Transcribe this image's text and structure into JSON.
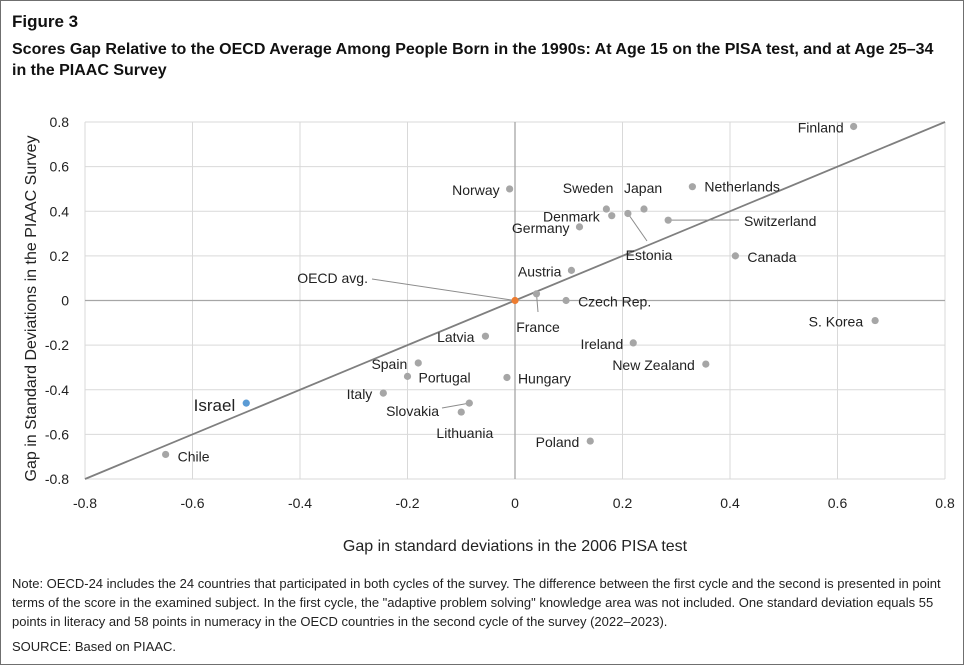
{
  "figure_label": "Figure 3",
  "title": "Scores Gap Relative to the OECD Average Among People Born in the 1990s: At Age 15 on the PISA test, and at Age 25–34 in the PIAAC Survey",
  "note": "Note: OECD-24 includes the 24 countries that participated in both cycles of the survey.  The difference between the first cycle and the second is presented in point terms of the score in the examined subject.  In the first cycle, the \"adaptive problem solving\" knowledge area was not included.  One standard deviation equals 55 points in literacy and 58 points in numeracy in the OECD countries in the second cycle of the survey (2022–2023).",
  "source": "SOURCE: Based on PIAAC.",
  "colors": {
    "point": "#a6a6a6",
    "israel": "#5b9bd5",
    "oecd": "#ed7d31",
    "line": "#7f7f7f",
    "grid": "#d9d9d9"
  },
  "chart_data": {
    "type": "scatter",
    "xlabel": "Gap in standard deviations in the 2006 PISA test",
    "ylabel": "Gap in Standard Deviations in the PIAAC Survey",
    "xlim": [
      -0.8,
      0.8
    ],
    "ylim": [
      -0.8,
      0.8
    ],
    "xticks": [
      "-0.8",
      "-0.6",
      "-0.4",
      "-0.2",
      "0",
      "0.2",
      "0.4",
      "0.6",
      "0.8"
    ],
    "yticks": [
      "0.8",
      "0.6",
      "0.4",
      "0.2",
      "0",
      "-0.2",
      "-0.4",
      "-0.6",
      "-0.8"
    ],
    "grid": true,
    "reference_line": "y = x",
    "points": [
      {
        "label": "Finland",
        "x": 0.63,
        "y": 0.78
      },
      {
        "label": "Norway",
        "x": -0.01,
        "y": 0.5
      },
      {
        "label": "Netherlands",
        "x": 0.33,
        "y": 0.51
      },
      {
        "label": "Sweden",
        "x": 0.17,
        "y": 0.41
      },
      {
        "label": "Japan",
        "x": 0.24,
        "y": 0.41
      },
      {
        "label": "Denmark",
        "x": 0.18,
        "y": 0.38
      },
      {
        "label": "Estonia",
        "x": 0.21,
        "y": 0.39
      },
      {
        "label": "Switzerland",
        "x": 0.285,
        "y": 0.36
      },
      {
        "label": "Germany",
        "x": 0.12,
        "y": 0.33
      },
      {
        "label": "Canada",
        "x": 0.41,
        "y": 0.2
      },
      {
        "label": "Austria",
        "x": 0.105,
        "y": 0.135
      },
      {
        "label": "France",
        "x": 0.04,
        "y": 0.03
      },
      {
        "label": "Czech Rep.",
        "x": 0.095,
        "y": 0.0
      },
      {
        "label": "S. Korea",
        "x": 0.67,
        "y": -0.09
      },
      {
        "label": "Latvia",
        "x": -0.055,
        "y": -0.16
      },
      {
        "label": "Ireland",
        "x": 0.22,
        "y": -0.19
      },
      {
        "label": "Spain",
        "x": -0.18,
        "y": -0.28
      },
      {
        "label": "New Zealand",
        "x": 0.355,
        "y": -0.285
      },
      {
        "label": "Portugal",
        "x": -0.2,
        "y": -0.34
      },
      {
        "label": "Hungary",
        "x": -0.015,
        "y": -0.345
      },
      {
        "label": "Italy",
        "x": -0.245,
        "y": -0.415
      },
      {
        "label": "Slovakia",
        "x": -0.085,
        "y": -0.46
      },
      {
        "label": "Lithuania",
        "x": -0.1,
        "y": -0.5
      },
      {
        "label": "Poland",
        "x": 0.14,
        "y": -0.63
      },
      {
        "label": "Chile",
        "x": -0.65,
        "y": -0.69
      },
      {
        "label": "Israel",
        "x": -0.5,
        "y": -0.46
      },
      {
        "label": "OECD avg.",
        "x": 0.0,
        "y": 0.0
      }
    ]
  }
}
